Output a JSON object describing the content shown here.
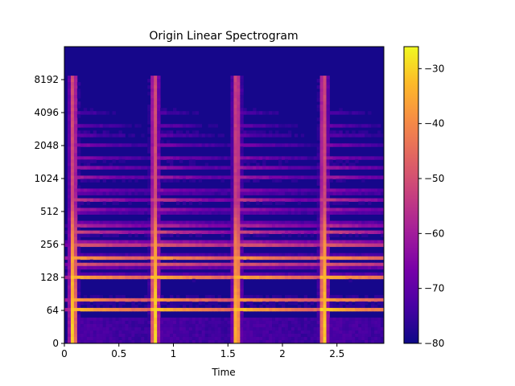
{
  "chart_data": {
    "type": "heatmap",
    "title": "Origin Linear Spectrogram",
    "xlabel": "Time",
    "ylabel": "",
    "xlim": [
      0,
      2.93
    ],
    "x_ticks": [
      {
        "value": 0,
        "label": "0"
      },
      {
        "value": 0.5,
        "label": "0.5"
      },
      {
        "value": 1.0,
        "label": "1"
      },
      {
        "value": 1.5,
        "label": "1.5"
      },
      {
        "value": 2.0,
        "label": "2"
      },
      {
        "value": 2.5,
        "label": "2.5"
      }
    ],
    "y_scale": "symlog",
    "y_ticks": [
      {
        "value": 0,
        "label": "0"
      },
      {
        "value": 64,
        "label": "64"
      },
      {
        "value": 128,
        "label": "128"
      },
      {
        "value": 256,
        "label": "256"
      },
      {
        "value": 512,
        "label": "512"
      },
      {
        "value": 1024,
        "label": "1024"
      },
      {
        "value": 2048,
        "label": "2048"
      },
      {
        "value": 4096,
        "label": "4096"
      },
      {
        "value": 8192,
        "label": "8192"
      }
    ],
    "colormap": "plasma",
    "colorbar": {
      "range": [
        -80,
        -26
      ],
      "ticks": [
        {
          "value": -30,
          "label": "−30"
        },
        {
          "value": -40,
          "label": "−40"
        },
        {
          "value": -50,
          "label": "−50"
        },
        {
          "value": -60,
          "label": "−60"
        },
        {
          "value": -70,
          "label": "−70"
        },
        {
          "value": -80,
          "label": "−80"
        }
      ]
    },
    "onsets": [
      0.05,
      0.8,
      1.55,
      2.35
    ],
    "harmonics": [
      {
        "freq": 65,
        "db": -30
      },
      {
        "freq": 80,
        "db": -35
      },
      {
        "freq": 130,
        "db": -29
      },
      {
        "freq": 165,
        "db": -38
      },
      {
        "freq": 195,
        "db": -33
      },
      {
        "freq": 260,
        "db": -32
      },
      {
        "freq": 330,
        "db": -48
      },
      {
        "freq": 390,
        "db": -45
      },
      {
        "freq": 520,
        "db": -50
      },
      {
        "freq": 650,
        "db": -52
      },
      {
        "freq": 780,
        "db": -54
      },
      {
        "freq": 1040,
        "db": -56
      },
      {
        "freq": 1300,
        "db": -58
      },
      {
        "freq": 1560,
        "db": -60
      },
      {
        "freq": 2080,
        "db": -62
      },
      {
        "freq": 2600,
        "db": -64
      },
      {
        "freq": 3120,
        "db": -66
      },
      {
        "freq": 4160,
        "db": -68
      }
    ]
  }
}
